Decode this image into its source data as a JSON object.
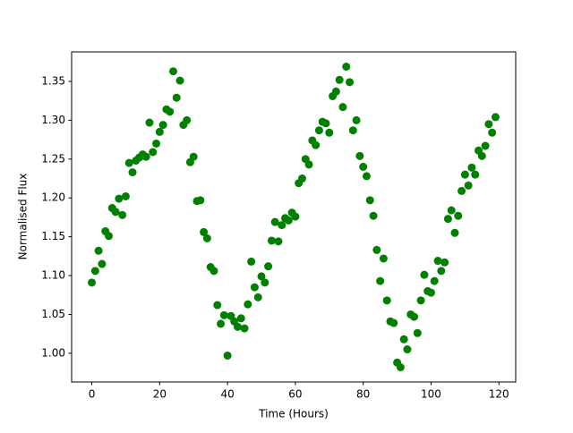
{
  "chart_data": {
    "type": "scatter",
    "xlabel": "Time (Hours)",
    "ylabel": "Normalised Flux",
    "color": "#008000",
    "x": [
      0,
      1,
      2,
      3,
      4,
      5,
      6,
      7,
      8,
      9,
      10,
      11,
      12,
      13,
      14,
      15,
      16,
      17,
      18,
      19,
      20,
      21,
      22,
      23,
      24,
      25,
      26,
      27,
      28,
      29,
      30,
      31,
      32,
      33,
      34,
      35,
      36,
      37,
      38,
      39,
      40,
      41,
      42,
      43,
      44,
      45,
      46,
      47,
      48,
      49,
      50,
      51,
      52,
      53,
      54,
      55,
      56,
      57,
      58,
      59,
      60,
      61,
      62,
      63,
      64,
      65,
      66,
      67,
      68,
      69,
      70,
      71,
      72,
      73,
      74,
      75,
      76,
      77,
      78,
      79,
      80,
      81,
      82,
      83,
      84,
      85,
      86,
      87,
      88,
      89,
      90,
      91,
      92,
      93,
      94,
      95,
      96,
      97,
      98,
      99,
      100,
      101,
      102,
      103,
      104,
      105,
      106,
      107,
      108,
      109,
      110,
      111,
      112,
      113,
      114,
      115,
      116,
      117,
      118,
      119
    ],
    "y": [
      1.091,
      1.106,
      1.132,
      1.115,
      1.157,
      1.151,
      1.187,
      1.182,
      1.199,
      1.178,
      1.202,
      1.245,
      1.233,
      1.248,
      1.252,
      1.256,
      1.253,
      1.297,
      1.259,
      1.27,
      1.285,
      1.294,
      1.314,
      1.311,
      1.363,
      1.329,
      1.351,
      1.294,
      1.3,
      1.246,
      1.253,
      1.196,
      1.197,
      1.156,
      1.148,
      1.111,
      1.106,
      1.062,
      1.038,
      1.049,
      0.997,
      1.048,
      1.041,
      1.034,
      1.045,
      1.032,
      1.063,
      1.118,
      1.085,
      1.072,
      1.099,
      1.091,
      1.112,
      1.145,
      1.169,
      1.144,
      1.165,
      1.174,
      1.171,
      1.181,
      1.176,
      1.219,
      1.225,
      1.25,
      1.243,
      1.274,
      1.268,
      1.287,
      1.298,
      1.296,
      1.284,
      1.331,
      1.337,
      1.352,
      1.317,
      1.369,
      1.349,
      1.287,
      1.3,
      1.254,
      1.24,
      1.228,
      1.197,
      1.177,
      1.133,
      1.093,
      1.122,
      1.068,
      1.041,
      1.039,
      0.988,
      0.982,
      1.018,
      1.005,
      1.05,
      1.047,
      1.026,
      1.068,
      1.101,
      1.08,
      1.078,
      1.093,
      1.119,
      1.106,
      1.117,
      1.173,
      1.184,
      1.155,
      1.177,
      1.209,
      1.23,
      1.216,
      1.239,
      1.23,
      1.261,
      1.254,
      1.267,
      1.295,
      1.284,
      1.304
    ],
    "xlim": [
      -5.95,
      124.95
    ],
    "ylim": [
      0.963,
      1.388
    ],
    "xticks": [
      0,
      20,
      40,
      60,
      80,
      100,
      120
    ],
    "yticks": [
      {
        "value": 1,
        "label": "1.00"
      },
      1.05,
      {
        "value": 1.1,
        "label": "1.10"
      },
      1.15,
      {
        "value": 1.2,
        "label": "1.20"
      },
      1.25,
      {
        "value": 1.3,
        "label": "1.30"
      },
      1.35
    ]
  }
}
